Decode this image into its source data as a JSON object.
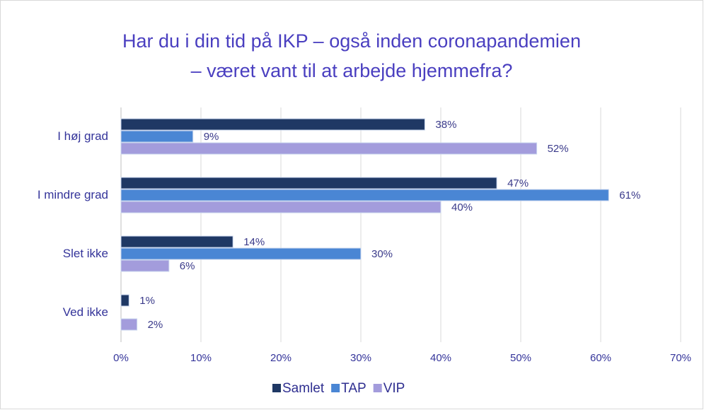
{
  "chart_data": {
    "type": "barh",
    "title": [
      "Har du i din tid på IKP – også inden coronapandemien",
      "– været vant til at arbejde hjemmefra?"
    ],
    "categories": [
      "I høj grad",
      "I mindre grad",
      "Slet ikke",
      "Ved ikke"
    ],
    "series": [
      {
        "name": "Samlet",
        "color": "#1f3864",
        "values": [
          38,
          47,
          14,
          1
        ],
        "value_labels": [
          "38%",
          "47%",
          "14%",
          "1%"
        ]
      },
      {
        "name": "TAP",
        "color": "#4a86d4",
        "values": [
          9,
          61,
          30,
          null
        ],
        "value_labels": [
          "9%",
          "61%",
          "30%",
          null
        ]
      },
      {
        "name": "VIP",
        "color": "#a39cdc",
        "values": [
          52,
          40,
          6,
          2
        ],
        "value_labels": [
          "52%",
          "40%",
          "6%",
          "2%"
        ]
      }
    ],
    "xlim": [
      0,
      70
    ],
    "xticks": [
      {
        "value": 0,
        "label": "0%"
      },
      {
        "value": 10,
        "label": "10%"
      },
      {
        "value": 20,
        "label": "20%"
      },
      {
        "value": 30,
        "label": "30%"
      },
      {
        "value": 40,
        "label": "40%"
      },
      {
        "value": 50,
        "label": "50%"
      },
      {
        "value": 60,
        "label": "60%"
      },
      {
        "value": 70,
        "label": "70%"
      }
    ],
    "grid": true,
    "legend": "bottom"
  }
}
